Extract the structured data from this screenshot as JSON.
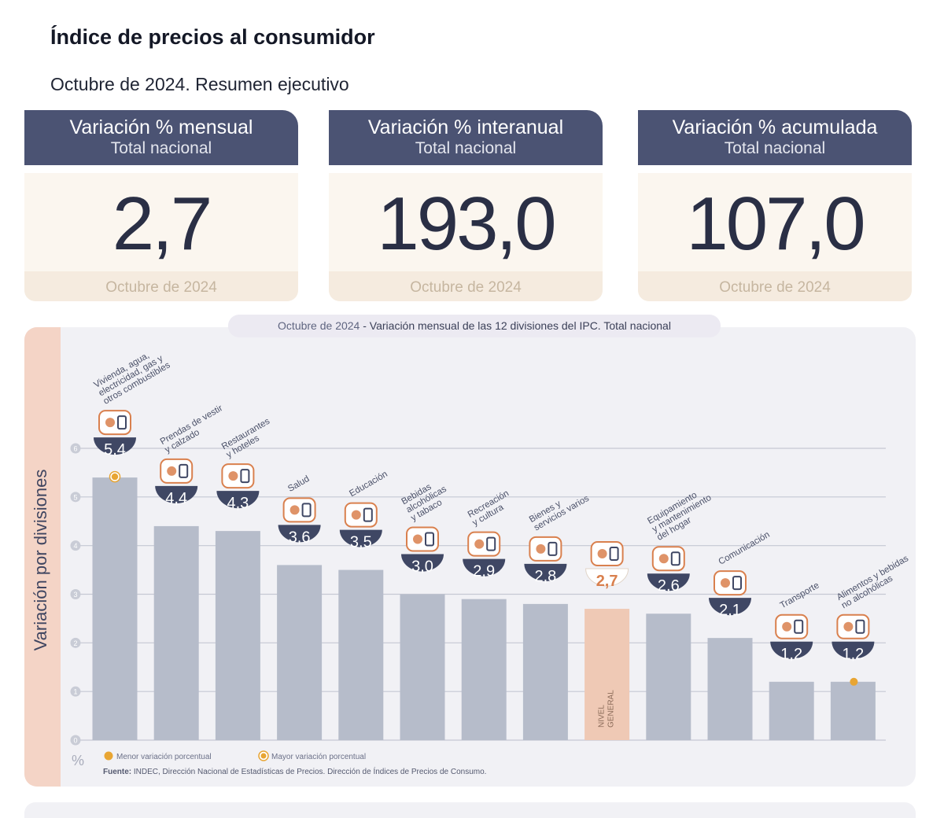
{
  "header": {
    "title": "Índice de precios al consumidor",
    "subtitle": "Octubre de 2024. Resumen ejecutivo"
  },
  "cards": [
    {
      "title": "Variación % mensual",
      "subtitle": "Total nacional",
      "value": "2,7",
      "date": "Octubre de 2024"
    },
    {
      "title": "Variación % interanual",
      "subtitle": "Total nacional",
      "value": "193,0",
      "date": "Octubre de 2024"
    },
    {
      "title": "Variación % acumulada",
      "subtitle": "Total nacional",
      "value": "107,0",
      "date": "Octubre de 2024"
    }
  ],
  "chart_data": {
    "type": "bar",
    "title_date": "Octubre de 2024",
    "title": "Variación mensual de las 12 divisiones del IPC. Total nacional",
    "ylabel": "Variación por divisiones",
    "yunit": "%",
    "ylim": [
      0,
      6
    ],
    "yticks": [
      0,
      1,
      2,
      3,
      4,
      5,
      6
    ],
    "grid": true,
    "categories": [
      "Vivienda, agua, electricidad, gas y otros combustibles",
      "Prendas de vestir y calzado",
      "Restaurantes y hoteles",
      "Salud",
      "Educación",
      "Bebidas alcohólicas y tabaco",
      "Recreación y cultura",
      "Bienes y servicios varios",
      "Nivel general",
      "Equipamiento y mantenimiento del hogar",
      "Comunicación",
      "Transporte",
      "Alimentos y bebidas no alcohólicas"
    ],
    "category_lines": [
      [
        "Vivienda, agua,",
        "electricidad, gas y",
        "otros combustibles"
      ],
      [
        "Prendas de vestir",
        "y calzado"
      ],
      [
        "Restaurantes",
        "y hoteles"
      ],
      [
        "Salud"
      ],
      [
        "Educación"
      ],
      [
        "Bebidas",
        "alcohólicas",
        "y tabaco"
      ],
      [
        "Recreación",
        "y cultura"
      ],
      [
        "Bienes y",
        "servicios varios"
      ],
      [],
      [
        "Equipamiento",
        "y mantenimiento",
        "del hogar"
      ],
      [
        "Comunicación"
      ],
      [
        "Transporte"
      ],
      [
        "Alimentos y bebidas",
        "no alcohólicas"
      ]
    ],
    "values": [
      5.4,
      4.4,
      4.3,
      3.6,
      3.5,
      3.0,
      2.9,
      2.8,
      2.7,
      2.6,
      2.1,
      1.2,
      1.2
    ],
    "value_labels": [
      "5,4",
      "4,4",
      "4,3",
      "3,6",
      "3,5",
      "3,0",
      "2,9",
      "2,8",
      "2,7",
      "2,6",
      "2,1",
      "1,2",
      "1,2"
    ],
    "highlight_index": 8,
    "highlight_label": [
      "NIVEL",
      "GENERAL"
    ],
    "max_index": 0,
    "min_index": 12,
    "icons": [
      "house-utilities-icon",
      "clothing-icon",
      "restaurant-icon",
      "health-icon",
      "education-icon",
      "drinks-icon",
      "recreation-icon",
      "misc-goods-icon",
      "general-basket-icon",
      "household-icon",
      "phone-icon",
      "transport-icon",
      "food-icon"
    ],
    "legend": [
      {
        "label": "Menor variación porcentual",
        "kind": "min"
      },
      {
        "label": "Mayor variación porcentual",
        "kind": "max"
      }
    ],
    "legend_placement": "bottom-left",
    "source_label": "Fuente:",
    "source": "INDEC, Dirección Nacional de Estadísticas de Precios. Dirección de Índices de Precios de Consumo."
  },
  "colors": {
    "header": "#4b5373",
    "bar": "#b6bcca",
    "highlight_bar": "#efc9b5",
    "badge": "#3f4764",
    "accent": "#e8a533",
    "icon": "#d9804e"
  }
}
